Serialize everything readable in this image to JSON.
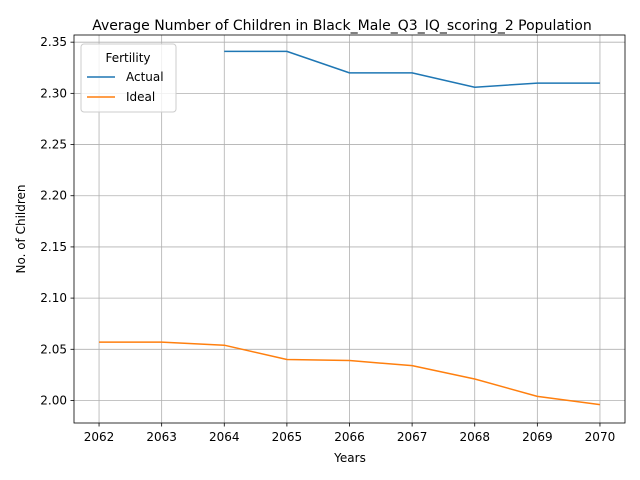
{
  "chart_data": {
    "type": "line",
    "title": "Average Number of Children in Black_Male_Q3_IQ_scoring_2 Population",
    "xlabel": "Years",
    "ylabel": "No. of Children",
    "x": [
      2062,
      2063,
      2064,
      2065,
      2066,
      2067,
      2068,
      2069,
      2070
    ],
    "xlim": [
      2061.6,
      2070.4
    ],
    "ylim": [
      1.978,
      2.357
    ],
    "yticks": [
      2.0,
      2.05,
      2.1,
      2.15,
      2.2,
      2.25,
      2.3,
      2.35
    ],
    "ytick_labels": [
      "2.00",
      "2.05",
      "2.10",
      "2.15",
      "2.20",
      "2.25",
      "2.30",
      "2.35"
    ],
    "grid": true,
    "legend": {
      "title": "Fertility",
      "placement": "top-left"
    },
    "series": [
      {
        "name": "Actual",
        "color": "#1f77b4",
        "values": [
          null,
          null,
          2.341,
          2.341,
          2.32,
          2.32,
          2.306,
          2.31,
          2.31
        ]
      },
      {
        "name": "Ideal",
        "color": "#ff7f0e",
        "values": [
          2.057,
          2.057,
          2.054,
          2.04,
          2.039,
          2.034,
          2.021,
          2.004,
          1.996
        ]
      }
    ]
  }
}
